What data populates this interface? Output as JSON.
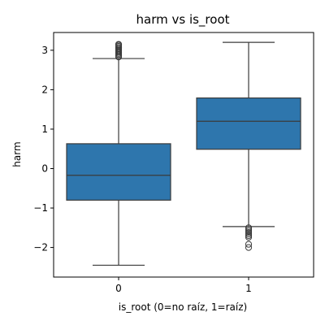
{
  "chart_data": {
    "type": "box",
    "title": "harm vs is_root",
    "xlabel": "is_root (0=no raíz, 1=raíz)",
    "ylabel": "harm",
    "ylim": [
      -2.75,
      3.45
    ],
    "yticks": [
      -2,
      -1,
      0,
      1,
      2,
      3
    ],
    "ytick_labels": [
      "−2",
      "−1",
      "0",
      "1",
      "2",
      "3"
    ],
    "categories": [
      "0",
      "1"
    ],
    "colors": {
      "box": "#2e76ad",
      "line": "#3b3b3b"
    },
    "boxes": [
      {
        "category": "0",
        "whisker_low": -2.45,
        "q1": -0.8,
        "median": -0.17,
        "q3": 0.63,
        "whisker_high": 2.79,
        "outliers": [
          2.83,
          2.86,
          2.89,
          2.92,
          2.95,
          2.98,
          3.01,
          3.04,
          3.07,
          3.1,
          3.13,
          3.15
        ]
      },
      {
        "category": "1",
        "whisker_low": -1.47,
        "q1": 0.49,
        "median": 1.2,
        "q3": 1.79,
        "whisker_high": 3.2,
        "outliers": [
          -1.5,
          -1.54,
          -1.58,
          -1.62,
          -1.66,
          -1.7,
          -1.74,
          -1.92,
          -2.0
        ]
      }
    ]
  }
}
